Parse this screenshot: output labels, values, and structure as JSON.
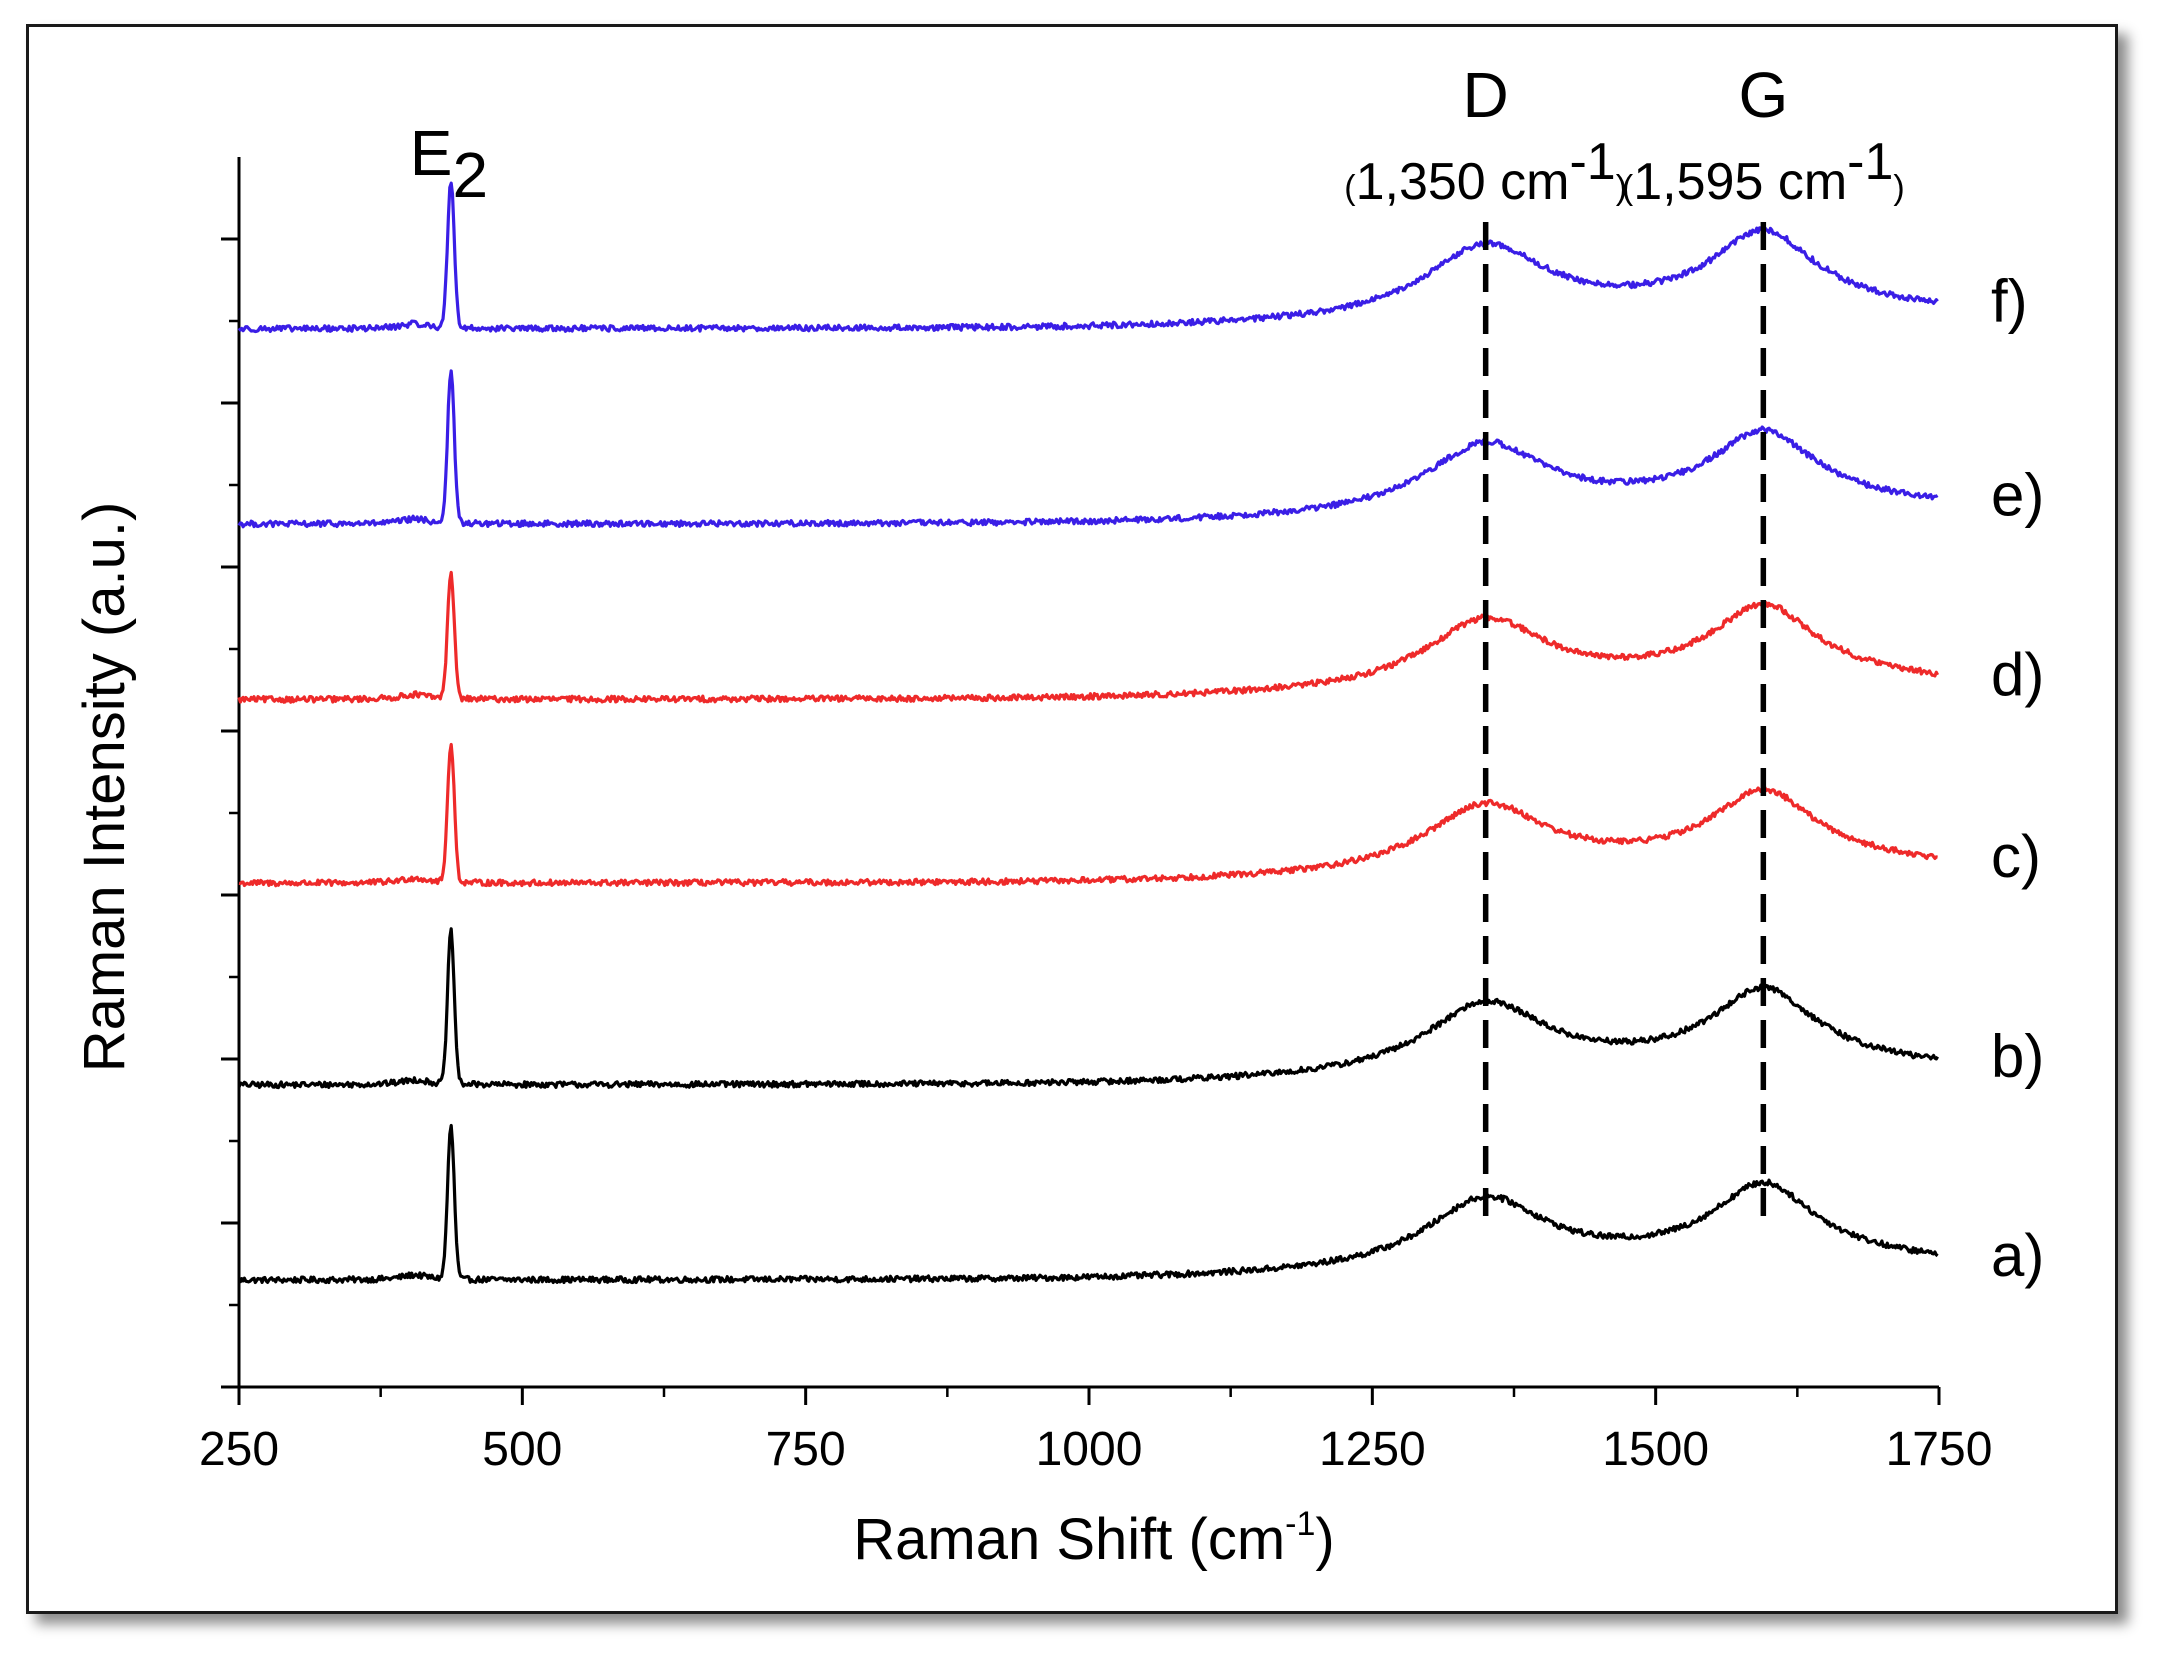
{
  "chart_data": {
    "type": "line",
    "title": "",
    "xlabel": "Raman Shift (cm",
    "xlabel_sup": "-1",
    "xlabel_end": ")",
    "ylabel": "Raman Intensity (a.u.)",
    "xlim": [
      250,
      1750
    ],
    "xticks": [
      250,
      500,
      750,
      1000,
      1250,
      1500,
      1750
    ],
    "xtick_labels": [
      "250",
      "500",
      "750",
      "1000",
      "1250",
      "1500",
      "1750"
    ],
    "ylim": [
      0,
      7.5
    ],
    "y_tick_count": 8,
    "y_tick_labels_shown": false,
    "colors": {
      "blue": "#3a1ee6",
      "red": "#ee2a2a",
      "black": "#000000",
      "axis": "#000000"
    },
    "peaks": [
      {
        "name": "E",
        "sub": "2",
        "x": 437,
        "position_label": "",
        "dashed_line": false
      },
      {
        "name": "D",
        "sub": "",
        "x": 1350,
        "position_label": "1,350 cm",
        "sup": "-1",
        "dashed_line": true
      },
      {
        "name": "G",
        "sub": "",
        "x": 1595,
        "position_label": "1,595 cm",
        "sup": "-1",
        "dashed_line": true
      }
    ],
    "series": [
      {
        "name": "a)",
        "color": "#000000",
        "offset": 0.65,
        "e2_height": 0.93,
        "d_height": 0.43,
        "g_height": 0.42,
        "tail_level": 0.25
      },
      {
        "name": "b)",
        "color": "#000000",
        "offset": 1.84,
        "e2_height": 0.93,
        "d_height": 0.43,
        "g_height": 0.42,
        "tail_level": 0.25
      },
      {
        "name": "c)",
        "color": "#ee2a2a",
        "offset": 3.07,
        "e2_height": 0.85,
        "d_height": 0.41,
        "g_height": 0.4,
        "tail_level": 0.25
      },
      {
        "name": "d)",
        "color": "#ee2a2a",
        "offset": 4.19,
        "e2_height": 0.77,
        "d_height": 0.42,
        "g_height": 0.41,
        "tail_level": 0.25
      },
      {
        "name": "e)",
        "color": "#3a1ee6",
        "offset": 5.26,
        "e2_height": 0.92,
        "d_height": 0.42,
        "g_height": 0.4,
        "tail_level": 0.25
      },
      {
        "name": "f)",
        "color": "#3a1ee6",
        "offset": 6.45,
        "e2_height": 0.9,
        "d_height": 0.44,
        "g_height": 0.43,
        "tail_level": 0.25
      }
    ]
  }
}
